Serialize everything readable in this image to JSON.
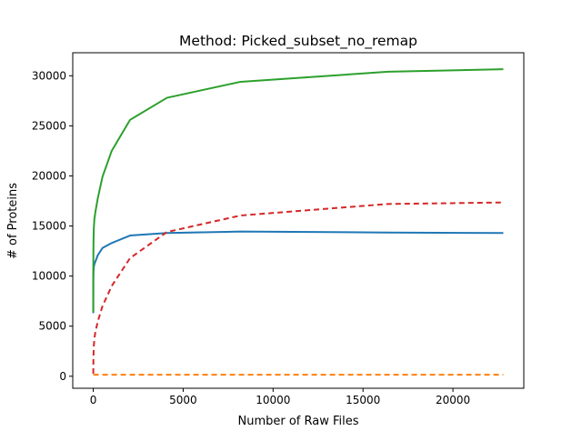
{
  "chart_data": {
    "type": "line",
    "title": "Method: Picked_subset_no_remap",
    "xlabel": "Number of Raw Files",
    "ylabel": "# of Proteins",
    "xlim": [
      -1140,
      23940
    ],
    "ylim": [
      -1200,
      32300
    ],
    "xticks": [
      0,
      5000,
      10000,
      15000,
      20000
    ],
    "yticks": [
      0,
      5000,
      10000,
      15000,
      20000,
      25000,
      30000
    ],
    "grid": false,
    "legend": "none",
    "series": [
      {
        "color": "#1f77b4",
        "dash": "solid",
        "x": [
          1,
          2,
          4,
          8,
          16,
          32,
          64,
          128,
          256,
          512,
          1024,
          2048,
          4096,
          8192,
          16384,
          22800
        ],
        "y": [
          6300,
          8200,
          9300,
          10000,
          10500,
          10900,
          11200,
          11500,
          12100,
          12800,
          13300,
          14050,
          14300,
          14450,
          14350,
          14300
        ]
      },
      {
        "color": "#ff7f0e",
        "dash": "dashed",
        "x": [
          1,
          2,
          4,
          8,
          16,
          32,
          64,
          128,
          256,
          512,
          1024,
          2048,
          4096,
          8192,
          16384,
          22800
        ],
        "y": [
          150,
          150,
          150,
          150,
          150,
          150,
          150,
          150,
          150,
          150,
          150,
          150,
          150,
          150,
          150,
          150
        ]
      },
      {
        "color": "#2ca02c",
        "dash": "solid",
        "x": [
          1,
          2,
          4,
          8,
          16,
          32,
          64,
          128,
          256,
          512,
          1024,
          2048,
          4096,
          8192,
          16384,
          22800
        ],
        "y": [
          6400,
          8300,
          10500,
          12300,
          13700,
          14800,
          15700,
          16500,
          17800,
          19900,
          22500,
          25600,
          27800,
          29400,
          30400,
          30650
        ]
      },
      {
        "color": "#d62728",
        "dash": "dashed",
        "x": [
          1,
          2,
          4,
          8,
          16,
          32,
          64,
          128,
          256,
          512,
          1024,
          2048,
          4096,
          8192,
          16384,
          22800
        ],
        "y": [
          250,
          500,
          900,
          1500,
          2200,
          3000,
          3800,
          4500,
          5500,
          7000,
          9000,
          11800,
          14400,
          16050,
          17200,
          17350
        ]
      }
    ]
  }
}
